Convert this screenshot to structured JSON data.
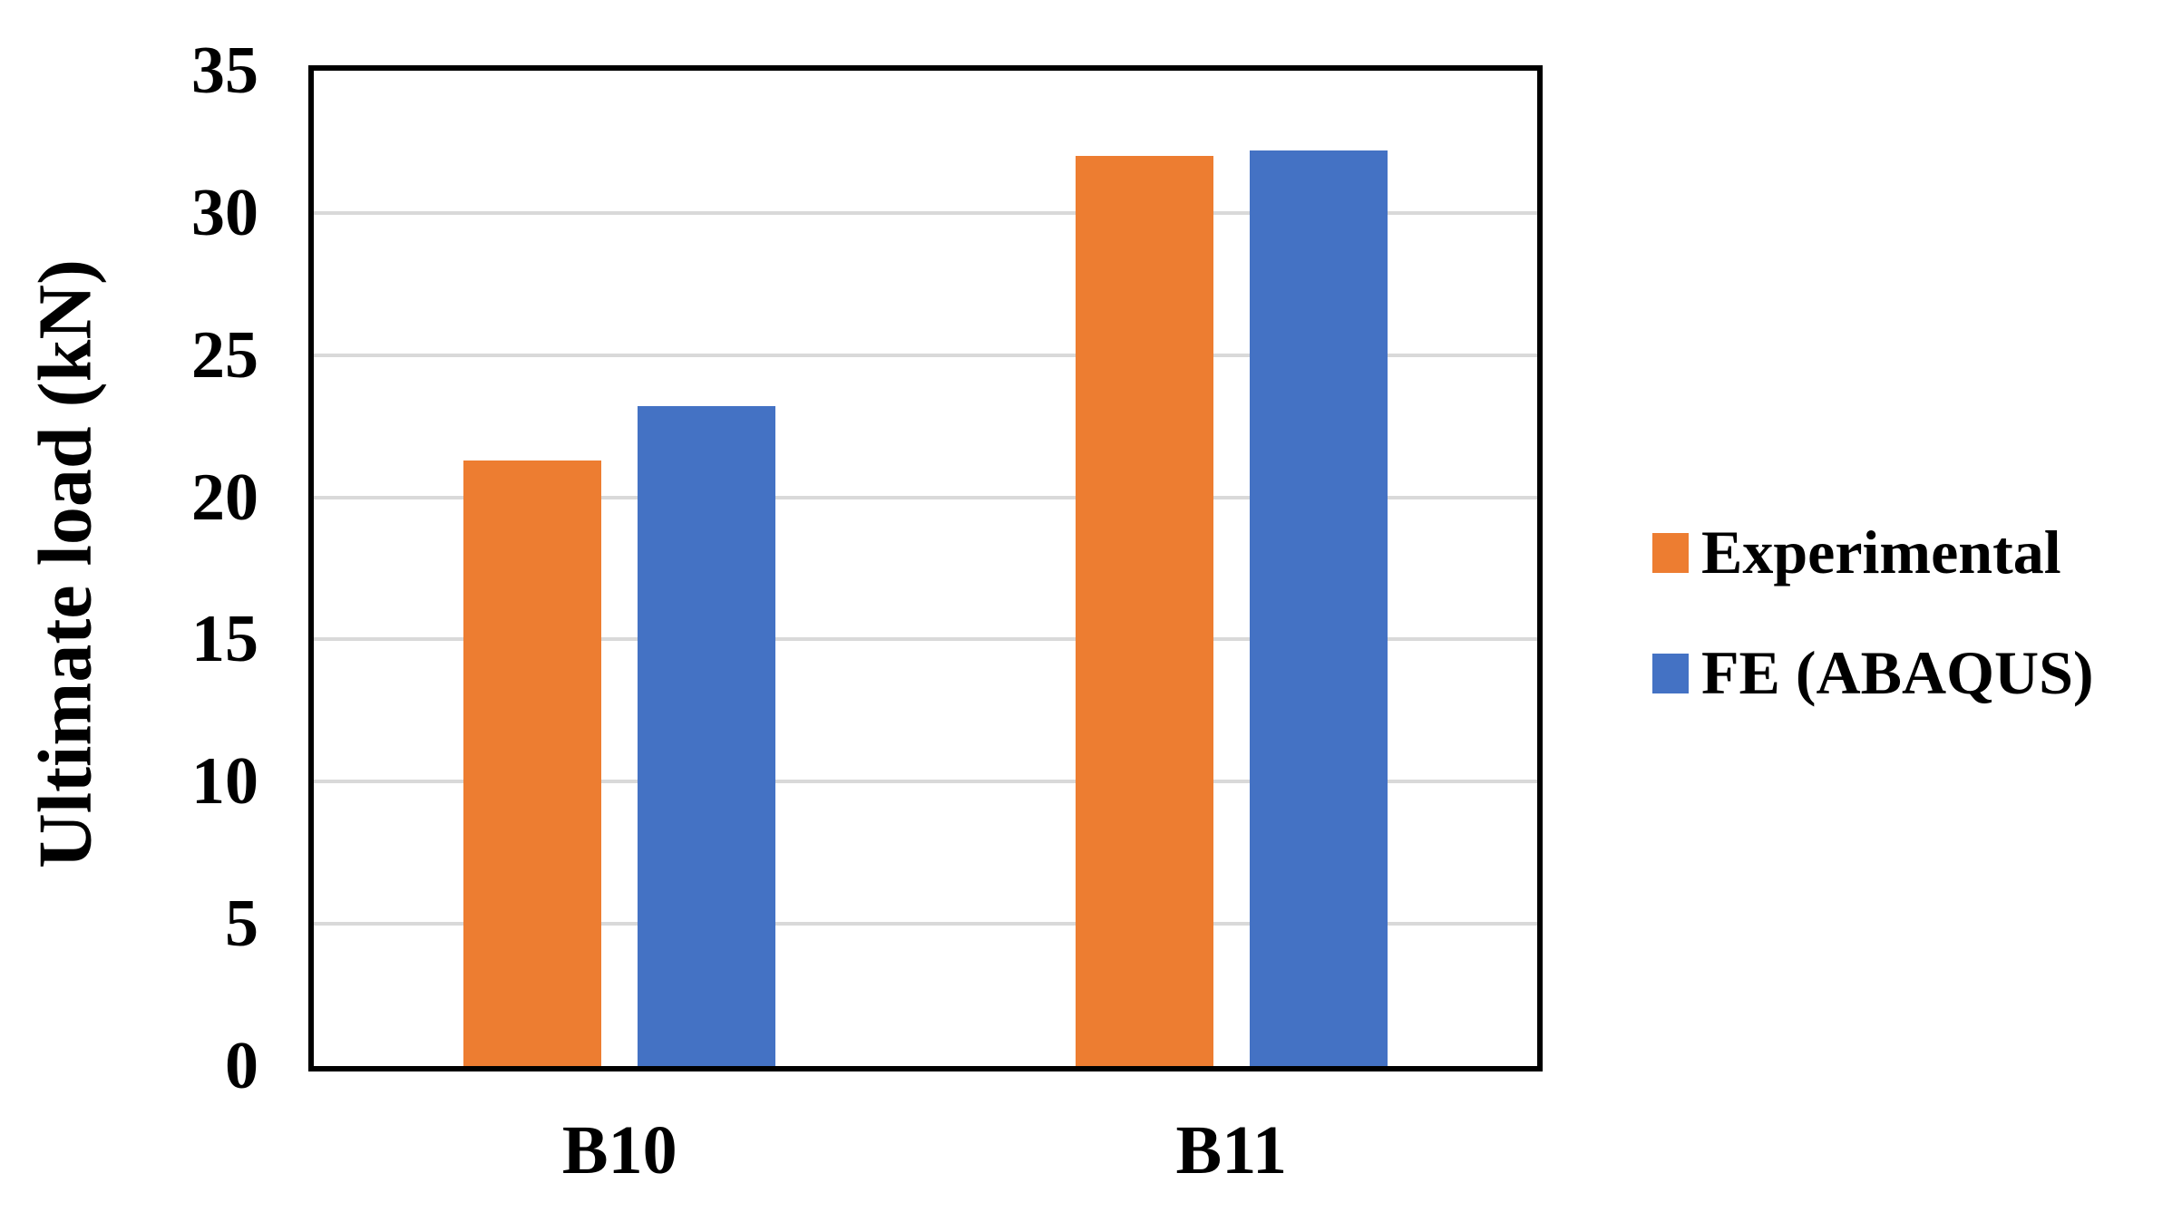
{
  "figure": {
    "background": "#FFFFFF",
    "frame_color": "#000000",
    "gridline_color": "#D9D9D9",
    "text_color": "#000000"
  },
  "chart_data": {
    "type": "bar",
    "title": "",
    "xlabel": "",
    "ylabel": "Ultimate load (kN)",
    "categories": [
      "B10",
      "B11"
    ],
    "series": [
      {
        "name": "Experimental",
        "color": "#ED7D31",
        "values": [
          21.3,
          32.0
        ]
      },
      {
        "name": "FE (ABAQUS)",
        "color": "#4472C4",
        "values": [
          23.2,
          32.2
        ]
      }
    ],
    "ylim": [
      0,
      35
    ],
    "ytick_step": 5,
    "yticks": [
      35,
      30,
      25,
      20,
      15,
      10,
      5,
      0
    ],
    "grid": "horizontal-major",
    "legend_position": "right-middle"
  }
}
